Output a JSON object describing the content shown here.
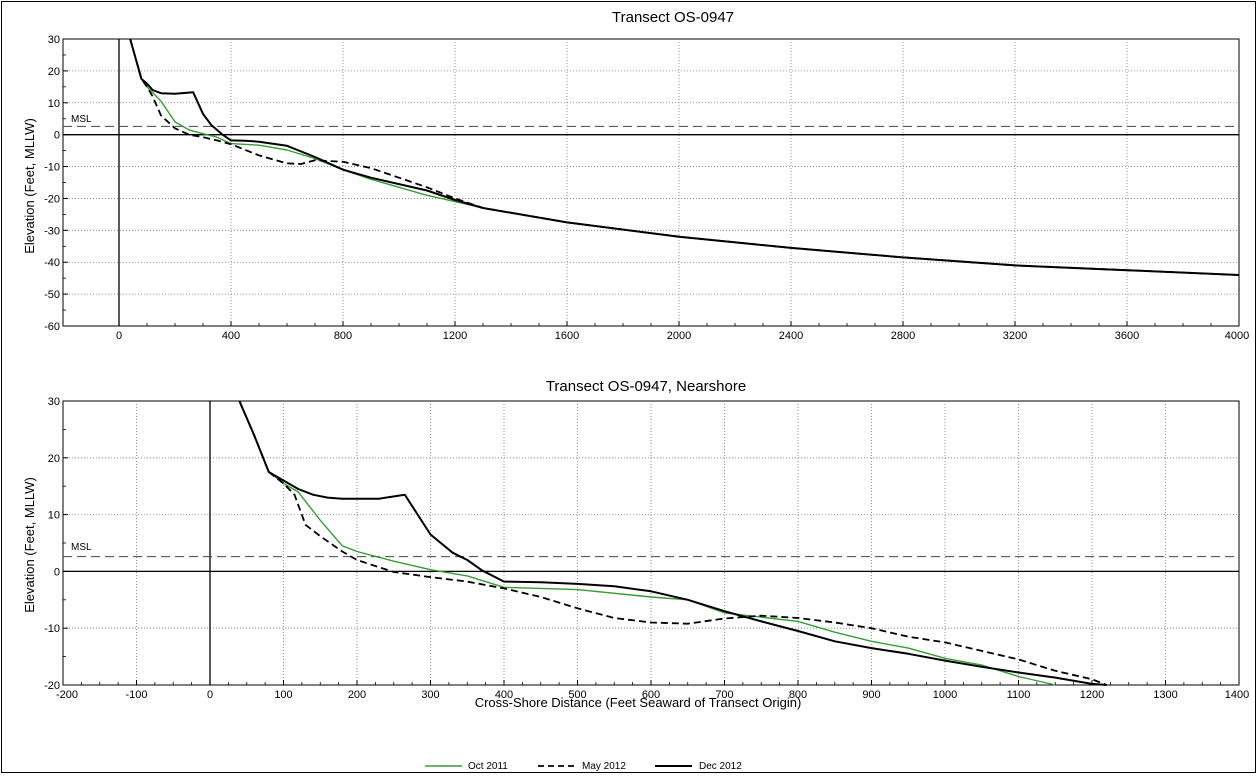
{
  "legend": [
    {
      "name": "Oct 2011",
      "color": "#3a9a3a",
      "dash": false
    },
    {
      "name": "May 2012",
      "color": "#000000",
      "dash": true
    },
    {
      "name": "Dec 2012",
      "color": "#000000",
      "dash": false
    }
  ],
  "chart_data": [
    {
      "type": "line",
      "title": "Transect  OS-0947",
      "ylabel": "Elevation (Feet, MLLW)",
      "xlabel": "",
      "xlim": [
        -200,
        4000
      ],
      "ylim": [
        -60,
        30
      ],
      "xticks": [
        0,
        400,
        800,
        1200,
        1600,
        2000,
        2400,
        2800,
        3200,
        3600,
        4000
      ],
      "yticks": [
        -60,
        -50,
        -40,
        -30,
        -20,
        -10,
        0,
        10,
        20,
        30
      ],
      "grid": true,
      "msl_label": "MSL",
      "msl": 2.6,
      "series": [
        {
          "name": "Oct 2011",
          "x": [
            40,
            80,
            100,
            150,
            200,
            250,
            300,
            350,
            400,
            500,
            600,
            700,
            800,
            900,
            1000,
            1100,
            1200,
            1300,
            1600,
            2000,
            2400,
            2800,
            3200,
            3600,
            4000
          ],
          "y": [
            30,
            17.5,
            15,
            10.5,
            4,
            1.5,
            0.3,
            -0.8,
            -2.8,
            -3.3,
            -4.8,
            -7.5,
            -11,
            -14,
            -16.5,
            -19,
            -21,
            -23,
            -27.5,
            -32,
            -35.5,
            -38.5,
            -41,
            -42.5,
            -44
          ]
        },
        {
          "name": "May 2012",
          "x": [
            40,
            80,
            100,
            120,
            150,
            200,
            250,
            300,
            350,
            400,
            500,
            600,
            650,
            700,
            800,
            900,
            1000,
            1100,
            1200,
            1300,
            1600,
            2000,
            2400,
            2800,
            3200,
            3600,
            4000
          ],
          "y": [
            30,
            17.5,
            15,
            12,
            6,
            2,
            0,
            -0.8,
            -1.8,
            -3,
            -6.5,
            -9,
            -9.2,
            -8,
            -8.5,
            -10.5,
            -13.5,
            -16.5,
            -20,
            -23,
            -27.5,
            -32,
            -35.5,
            -38.5,
            -41,
            -42.5,
            -44
          ]
        },
        {
          "name": "Dec 2012",
          "x": [
            40,
            80,
            100,
            120,
            150,
            200,
            265,
            300,
            330,
            370,
            400,
            450,
            500,
            600,
            700,
            800,
            900,
            1000,
            1100,
            1200,
            1300,
            1600,
            2000,
            2400,
            2800,
            3200,
            3600,
            4000
          ],
          "y": [
            30,
            17.5,
            16,
            14,
            13,
            12.8,
            13.3,
            6.5,
            3,
            0,
            -1.8,
            -1.9,
            -2.2,
            -3.5,
            -7,
            -11,
            -13.5,
            -15.5,
            -17.5,
            -20.5,
            -23,
            -27.5,
            -32,
            -35.5,
            -38.5,
            -41,
            -42.5,
            -44
          ]
        }
      ]
    },
    {
      "type": "line",
      "title": "Transect  OS-0947, Nearshore",
      "ylabel": "Elevation (Feet, MLLW)",
      "xlabel": "Cross-Shore Distance (Feet Seaward of Transect Origin)",
      "xlim": [
        -200,
        1400
      ],
      "ylim": [
        -20,
        30
      ],
      "xticks": [
        -200,
        -100,
        0,
        100,
        200,
        300,
        400,
        500,
        600,
        700,
        800,
        900,
        1000,
        1100,
        1200,
        1300,
        1400
      ],
      "yticks": [
        -20,
        -10,
        0,
        10,
        20,
        30
      ],
      "grid": true,
      "msl_label": "MSL",
      "msl": 2.6,
      "series": [
        {
          "name": "Oct 2011",
          "x": [
            40,
            60,
            80,
            100,
            120,
            150,
            180,
            200,
            250,
            300,
            350,
            400,
            500,
            600,
            650,
            700,
            800,
            850,
            900,
            950,
            1000,
            1050,
            1100,
            1150
          ],
          "y": [
            30,
            24,
            17.5,
            15.5,
            14,
            9,
            4.5,
            3.5,
            1.8,
            0.3,
            -0.8,
            -2.8,
            -3.2,
            -4.5,
            -5,
            -7.3,
            -8.8,
            -10.7,
            -12.3,
            -13.5,
            -15.3,
            -16.5,
            -18.5,
            -20
          ]
        },
        {
          "name": "May 2012",
          "x": [
            40,
            60,
            80,
            100,
            115,
            130,
            150,
            180,
            200,
            250,
            300,
            350,
            400,
            450,
            500,
            550,
            600,
            650,
            700,
            750,
            800,
            850,
            900,
            950,
            1000,
            1050,
            1100,
            1150,
            1200,
            1220
          ],
          "y": [
            30,
            24,
            17.5,
            15.5,
            13.5,
            8.2,
            6.2,
            3.5,
            2,
            -0.1,
            -1,
            -1.8,
            -3,
            -4.5,
            -6.5,
            -8.2,
            -9,
            -9.2,
            -8.3,
            -7.8,
            -8.2,
            -9,
            -10,
            -11.5,
            -12.5,
            -14,
            -15.5,
            -17.5,
            -19,
            -20
          ]
        },
        {
          "name": "Dec 2012",
          "x": [
            40,
            60,
            80,
            100,
            120,
            140,
            160,
            180,
            200,
            230,
            265,
            300,
            330,
            350,
            370,
            400,
            450,
            500,
            550,
            600,
            650,
            700,
            750,
            800,
            850,
            900,
            950,
            1000,
            1050,
            1100,
            1150,
            1200,
            1220
          ],
          "y": [
            30,
            24,
            17.5,
            16,
            14.5,
            13.5,
            13,
            12.8,
            12.8,
            12.8,
            13.5,
            6.5,
            3.3,
            2,
            0.2,
            -1.8,
            -1.9,
            -2.2,
            -2.6,
            -3.5,
            -5,
            -7,
            -8.8,
            -10.5,
            -12.3,
            -13.5,
            -14.5,
            -15.7,
            -16.8,
            -17.8,
            -18.7,
            -19.8,
            -20
          ]
        }
      ]
    }
  ]
}
